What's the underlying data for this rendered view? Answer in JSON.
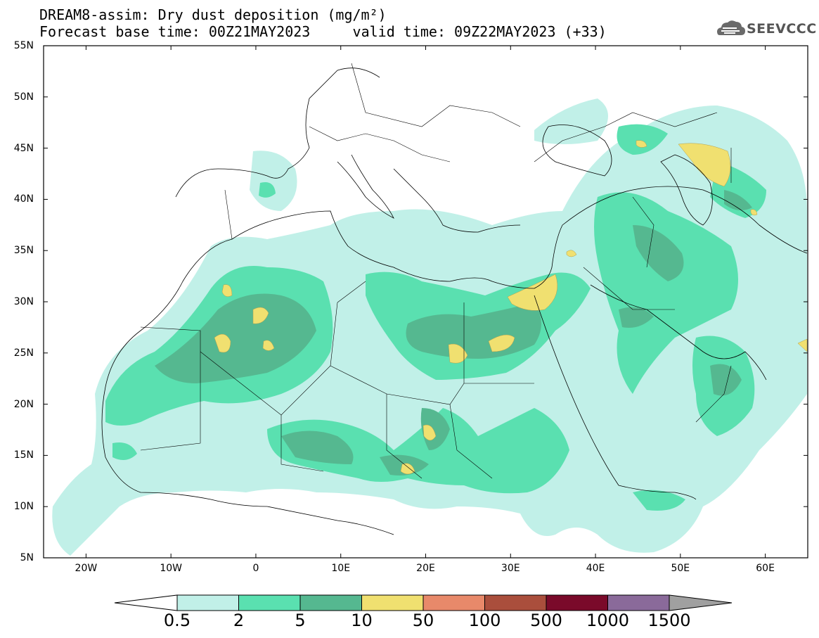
{
  "title": {
    "line1": "DREAM8-assim: Dry dust deposition (mg/m²)",
    "line2_left": "Forecast base time: 00Z21MAY2023",
    "line2_right": "valid time: 09Z22MAY2023 (+33)"
  },
  "logo": {
    "text": "SEEVCCC",
    "icon": "cloud-logo-icon"
  },
  "axes": {
    "lat_labels": [
      "55N",
      "50N",
      "45N",
      "40N",
      "35N",
      "30N",
      "25N",
      "20N",
      "15N",
      "10N",
      "5N"
    ],
    "lat_values": [
      55,
      50,
      45,
      40,
      35,
      30,
      25,
      20,
      15,
      10,
      5
    ],
    "lon_labels": [
      "20W",
      "10W",
      "0",
      "10E",
      "20E",
      "30E",
      "40E",
      "50E",
      "60E"
    ],
    "lon_values": [
      -20,
      -10,
      0,
      10,
      20,
      30,
      40,
      50,
      60
    ],
    "lon_range": [
      -25,
      65
    ],
    "lat_range": [
      5,
      55
    ]
  },
  "colorbar": {
    "labels": [
      "0.5",
      "2",
      "5",
      "10",
      "50",
      "100",
      "500",
      "1000",
      "1500"
    ],
    "colors": [
      "#c1f0e8",
      "#5ae0b0",
      "#55b890",
      "#f0e070",
      "#e8896a",
      "#aa4e3c",
      "#7a0a2a",
      "#8a6a9a",
      "#a0a0a0"
    ]
  }
}
